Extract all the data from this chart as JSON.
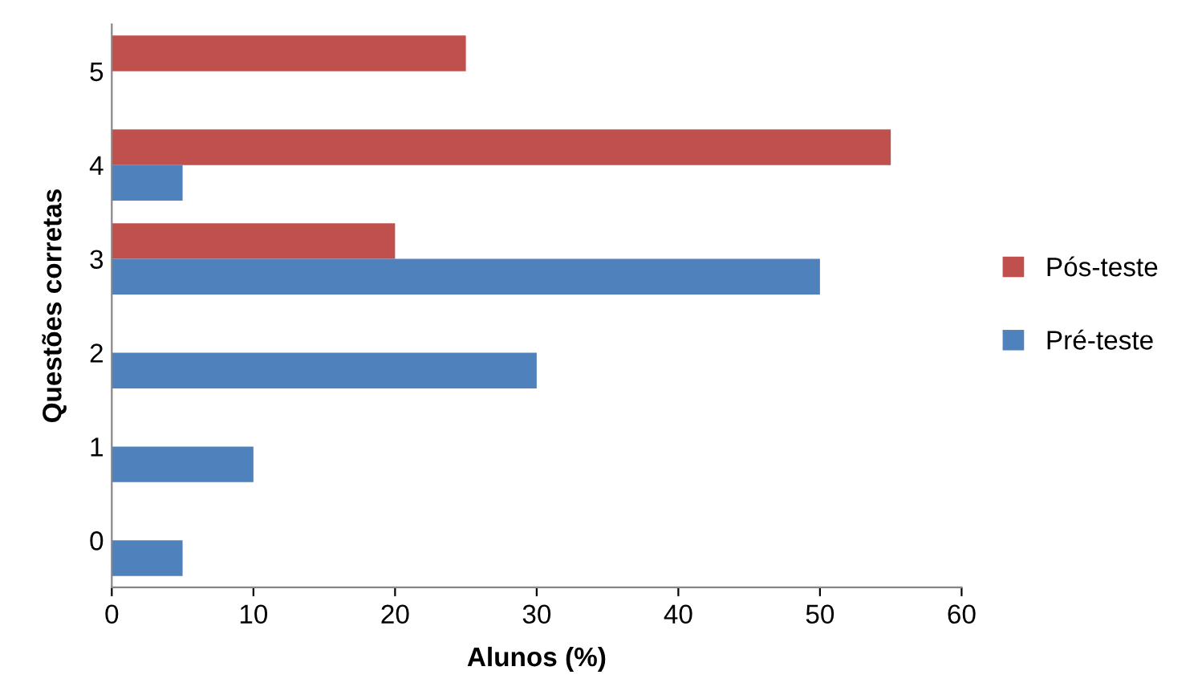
{
  "chart_data": {
    "type": "bar",
    "orientation": "horizontal",
    "xlabel": "Alunos (%)",
    "ylabel": "Questões corretas",
    "categories": [
      "5",
      "4",
      "3",
      "2",
      "1",
      "0"
    ],
    "series": [
      {
        "name": "Pós-teste",
        "color": "#c0504d",
        "values": [
          25,
          55,
          20,
          0,
          0,
          0
        ]
      },
      {
        "name": "Pré-teste",
        "color": "#4f81bd",
        "values": [
          0,
          5,
          50,
          30,
          10,
          5
        ]
      }
    ],
    "xlim": [
      0,
      60
    ],
    "xticks": [
      0,
      10,
      20,
      30,
      40,
      50,
      60
    ],
    "grid": false,
    "legend": "right"
  }
}
